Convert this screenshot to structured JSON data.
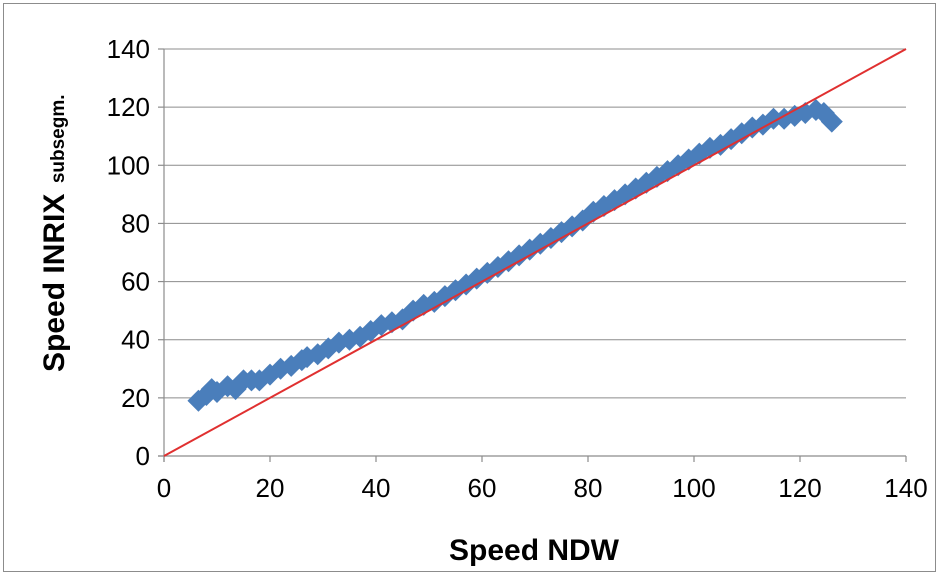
{
  "chart_data": {
    "type": "scatter",
    "xlabel": "Speed NDW",
    "ylabel": "Speed INRIX",
    "ylabel_sub": "subsegm.",
    "xlim": [
      0,
      140
    ],
    "ylim": [
      0,
      140
    ],
    "xticks": [
      0,
      20,
      40,
      60,
      80,
      100,
      120,
      140
    ],
    "yticks": [
      0,
      20,
      40,
      60,
      80,
      100,
      120,
      140
    ],
    "grid": "horizontal",
    "marker": "diamond",
    "marker_color": "#4a7ebb",
    "reference_line": {
      "type": "y=x",
      "from": [
        0,
        0
      ],
      "to": [
        140,
        140
      ],
      "color": "#e03030"
    },
    "series": [
      {
        "x": [
          6.5,
          8,
          9,
          10,
          12,
          13.5,
          15,
          16.5,
          18,
          20,
          22,
          24,
          26,
          27,
          29,
          31,
          33,
          35,
          37,
          39,
          41,
          43,
          45,
          47,
          49,
          51,
          53,
          55,
          57,
          59,
          61,
          63,
          65,
          67,
          69,
          71,
          73,
          75,
          77,
          79,
          81,
          83,
          85,
          87,
          89,
          91,
          93,
          95,
          97,
          99,
          101,
          103,
          105,
          107,
          109,
          111,
          113,
          115,
          117,
          119,
          121,
          123,
          124.5,
          126
        ],
        "y": [
          19,
          21,
          23,
          22,
          24,
          23,
          26,
          26,
          26,
          28,
          30,
          31,
          33,
          34,
          35,
          37,
          39,
          40,
          41,
          43,
          45,
          46,
          47,
          50,
          52,
          53,
          55,
          57,
          59,
          61,
          63,
          65,
          67,
          69,
          71,
          73,
          75,
          77,
          79,
          81,
          84,
          86,
          88,
          90,
          92,
          94,
          96,
          98,
          100,
          102,
          104,
          106,
          107,
          109,
          111,
          113,
          114,
          116,
          116,
          117,
          118,
          119,
          118,
          115
        ]
      }
    ]
  }
}
